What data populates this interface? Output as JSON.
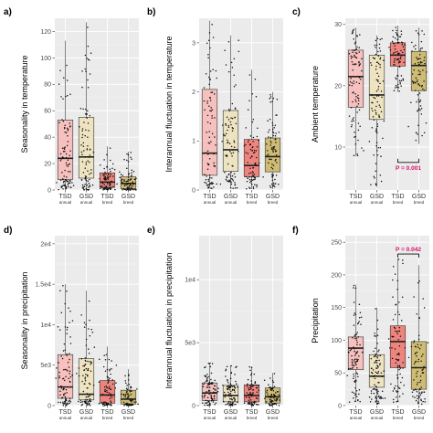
{
  "chart_data": [
    {
      "panel_label": "a)",
      "type": "box",
      "ylabel": "Seasonality in temperature",
      "ylim": [
        0,
        130
      ],
      "yticks": [
        0,
        20,
        40,
        60,
        80,
        100,
        120
      ],
      "ytick_labels": [
        "0",
        "20",
        "40",
        "60",
        "80",
        "100",
        "120"
      ],
      "categories": [
        {
          "main": "TSD",
          "sub": "annual"
        },
        {
          "main": "GSD",
          "sub": "annual"
        },
        {
          "main": "TSD",
          "sub": "breed"
        },
        {
          "main": "GSD",
          "sub": "breed"
        }
      ],
      "series": [
        {
          "min": 0,
          "q1": 8,
          "median": 24,
          "q3": 53,
          "max": 113,
          "n": 90
        },
        {
          "min": 0,
          "q1": 9,
          "median": 25,
          "q3": 55,
          "max": 127,
          "n": 90
        },
        {
          "min": 0,
          "q1": 2,
          "median": 6,
          "q3": 13,
          "max": 33,
          "n": 80
        },
        {
          "min": 0,
          "q1": 1,
          "median": 5,
          "q3": 10,
          "max": 29,
          "n": 80
        }
      ]
    },
    {
      "panel_label": "b)",
      "type": "box",
      "ylabel": "Interannual fluctuation in temperature",
      "ylim": [
        0,
        3.5
      ],
      "yticks": [
        0,
        1,
        2,
        3
      ],
      "ytick_labels": [
        "0",
        "1",
        "2",
        "3"
      ],
      "categories": [
        {
          "main": "TSD",
          "sub": "annual"
        },
        {
          "main": "GSD",
          "sub": "annual"
        },
        {
          "main": "TSD",
          "sub": "breed"
        },
        {
          "main": "GSD",
          "sub": "breed"
        }
      ],
      "series": [
        {
          "min": 0.03,
          "q1": 0.3,
          "median": 0.75,
          "q3": 2.05,
          "max": 3.45,
          "n": 90
        },
        {
          "min": 0.03,
          "q1": 0.38,
          "median": 0.82,
          "q3": 1.62,
          "max": 3.15,
          "n": 90
        },
        {
          "min": 0.02,
          "q1": 0.27,
          "median": 0.5,
          "q3": 1.03,
          "max": 2.45,
          "n": 80
        },
        {
          "min": 0.02,
          "q1": 0.37,
          "median": 0.68,
          "q3": 1.06,
          "max": 2.0,
          "n": 80
        }
      ]
    },
    {
      "panel_label": "c)",
      "type": "box",
      "ylabel": "Ambient temperature",
      "ylim": [
        3,
        31
      ],
      "yticks": [
        10,
        20,
        30
      ],
      "ytick_labels": [
        "10",
        "20",
        "30"
      ],
      "categories": [
        {
          "main": "TSD",
          "sub": "annual"
        },
        {
          "main": "GSD",
          "sub": "annual"
        },
        {
          "main": "TSD",
          "sub": "breed"
        },
        {
          "main": "GSD",
          "sub": "breed"
        }
      ],
      "series": [
        {
          "min": 8.5,
          "q1": 16.5,
          "median": 21.5,
          "q3": 25.8,
          "max": 29.5,
          "n": 90
        },
        {
          "min": 3.5,
          "q1": 14.5,
          "median": 18.5,
          "q3": 25.0,
          "max": 28.2,
          "n": 90
        },
        {
          "min": 19.0,
          "q1": 23.2,
          "median": 25.0,
          "q3": 27.0,
          "max": 29.8,
          "n": 80
        },
        {
          "min": 10.5,
          "q1": 19.2,
          "median": 23.3,
          "q3": 25.6,
          "max": 29.5,
          "n": 80
        }
      ],
      "annotation": {
        "text": "P = 0.001",
        "between": [
          2,
          3
        ],
        "y": 7.5,
        "bracket": "below"
      }
    },
    {
      "panel_label": "d)",
      "type": "box",
      "ylabel": "Seasonality in precipitation",
      "ylim": [
        0,
        21000
      ],
      "yticks": [
        0,
        5000,
        10000,
        15000,
        20000
      ],
      "ytick_labels": [
        "0",
        "5e3",
        "1e4",
        "1.5e4",
        "2e4"
      ],
      "categories": [
        {
          "main": "TSD",
          "sub": "annual"
        },
        {
          "main": "GSD",
          "sub": "annual"
        },
        {
          "main": "TSD",
          "sub": "breed"
        },
        {
          "main": "GSD",
          "sub": "breed"
        }
      ],
      "series": [
        {
          "min": 0,
          "q1": 900,
          "median": 2300,
          "q3": 6300,
          "max": 15000,
          "n": 90
        },
        {
          "min": 0,
          "q1": 700,
          "median": 1400,
          "q3": 5800,
          "max": 14200,
          "n": 90
        },
        {
          "min": 0,
          "q1": 300,
          "median": 1300,
          "q3": 3100,
          "max": 7300,
          "n": 80
        },
        {
          "min": 0,
          "q1": 200,
          "median": 800,
          "q3": 1900,
          "max": 4500,
          "n": 80
        }
      ]
    },
    {
      "panel_label": "e)",
      "type": "box",
      "ylabel": "Interannual fluctuation in precipitation",
      "ylim": [
        0,
        13500
      ],
      "yticks": [
        0,
        5000,
        10000
      ],
      "ytick_labels": [
        "0",
        "5e3",
        "1e4"
      ],
      "categories": [
        {
          "main": "TSD",
          "sub": "annual"
        },
        {
          "main": "GSD",
          "sub": "annual"
        },
        {
          "main": "TSD",
          "sub": "breed"
        },
        {
          "main": "GSD",
          "sub": "breed"
        }
      ],
      "series": [
        {
          "min": 0,
          "q1": 400,
          "median": 1000,
          "q3": 1800,
          "max": 3400,
          "n": 90
        },
        {
          "min": 0,
          "q1": 300,
          "median": 800,
          "q3": 1600,
          "max": 3200,
          "n": 90
        },
        {
          "min": 0,
          "q1": 300,
          "median": 800,
          "q3": 1650,
          "max": 3100,
          "n": 80
        },
        {
          "min": 0,
          "q1": 200,
          "median": 700,
          "q3": 1400,
          "max": 2600,
          "n": 80
        }
      ]
    },
    {
      "panel_label": "f)",
      "type": "box",
      "ylabel": "Precipitation",
      "ylim": [
        0,
        260
      ],
      "yticks": [
        0,
        50,
        100,
        150,
        200,
        250
      ],
      "ytick_labels": [
        "0",
        "50",
        "100",
        "150",
        "200",
        "250"
      ],
      "categories": [
        {
          "main": "TSD",
          "sub": "annual"
        },
        {
          "main": "GSD",
          "sub": "annual"
        },
        {
          "main": "TSD",
          "sub": "breed"
        },
        {
          "main": "GSD",
          "sub": "breed"
        }
      ],
      "series": [
        {
          "min": 5,
          "q1": 55,
          "median": 88,
          "q3": 105,
          "max": 185,
          "n": 90
        },
        {
          "min": 2,
          "q1": 28,
          "median": 45,
          "q3": 78,
          "max": 150,
          "n": 90
        },
        {
          "min": 5,
          "q1": 58,
          "median": 98,
          "q3": 122,
          "max": 225,
          "n": 80
        },
        {
          "min": 2,
          "q1": 25,
          "median": 58,
          "q3": 98,
          "max": 215,
          "n": 80
        }
      ],
      "annotation": {
        "text": "P = 0.042",
        "between": [
          2,
          3
        ],
        "y": 232,
        "bracket": "above"
      }
    }
  ],
  "colors": {
    "box_fills": [
      "#f7b9b5",
      "#ede2b8",
      "#ee726b",
      "#c9b460"
    ],
    "panel_background": "#ebebeb",
    "grid": "#ffffff",
    "annotation": "#d4106a",
    "points": "#111111"
  }
}
